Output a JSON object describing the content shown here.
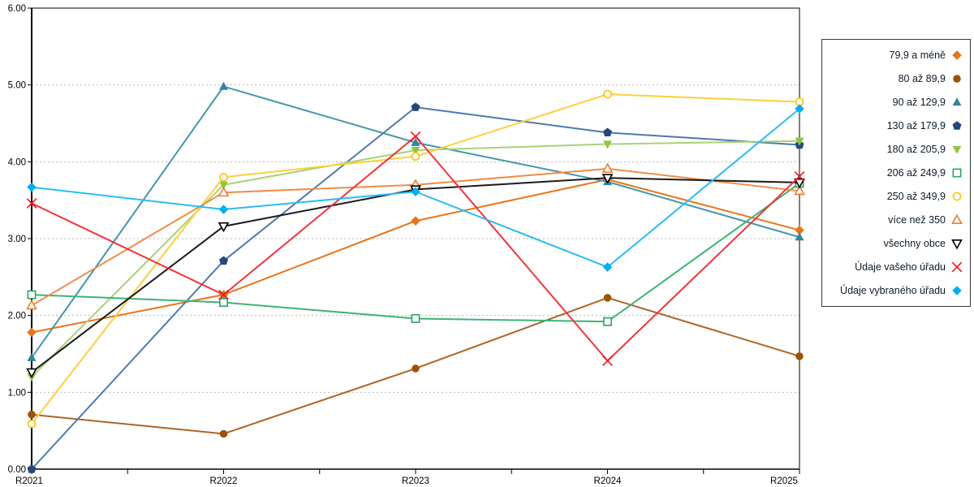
{
  "chart_data": {
    "type": "line",
    "title": "",
    "xlabel": "",
    "ylabel": "",
    "categories": [
      "R2021",
      "R2022",
      "R2023",
      "R2024",
      "R2025"
    ],
    "y_axis": {
      "min": 0,
      "max": 6,
      "step": 1,
      "tick_labels": [
        "0.00",
        "1.00",
        "2.00",
        "3.00",
        "4.00",
        "5.00",
        "6.00"
      ]
    },
    "grid": "horizontal-dashed",
    "legend_position": "right-outside",
    "series": [
      {
        "name": "79,9 a méně",
        "marker": "diamond",
        "color": "#e8751a",
        "line_color": "#e8751a",
        "values": [
          1.78,
          2.27,
          3.23,
          3.77,
          3.11
        ]
      },
      {
        "name": "80 až 89,9",
        "marker": "circle",
        "color": "#9d5206",
        "line_color": "#ad6426",
        "values": [
          0.71,
          0.46,
          1.31,
          2.23,
          1.47
        ]
      },
      {
        "name": "90 až 129,9",
        "marker": "triangle-up",
        "color": "#31859c",
        "line_color": "#4596aa",
        "values": [
          1.45,
          4.98,
          4.25,
          3.74,
          3.02
        ]
      },
      {
        "name": "130 až 179,9",
        "marker": "pentagon",
        "color": "#25477a",
        "line_color": "#4d79b0",
        "values": [
          0.0,
          2.71,
          4.71,
          4.38,
          4.22
        ]
      },
      {
        "name": "180 až 205,9",
        "marker": "triangle-down",
        "color": "#8ec63f",
        "line_color": "#a9d276",
        "values": [
          1.2,
          3.7,
          4.15,
          4.23,
          4.27
        ]
      },
      {
        "name": "206 až 249,9",
        "marker": "square-open",
        "color": "#2ba45c",
        "line_color": "#3db377",
        "values": [
          2.27,
          2.17,
          1.96,
          1.92,
          3.72
        ]
      },
      {
        "name": "250 až 349,9",
        "marker": "circle-open",
        "color": "#ffc000",
        "line_color": "#ffce3d",
        "values": [
          0.59,
          3.8,
          4.07,
          4.88,
          4.78
        ]
      },
      {
        "name": "více než 350",
        "marker": "triangle-up-open",
        "color": "#ed7d31",
        "line_color": "#f08c48",
        "values": [
          2.13,
          3.6,
          3.7,
          3.91,
          3.62
        ]
      },
      {
        "name": "všechny obce",
        "marker": "triangle-down-open",
        "color": "#000000",
        "line_color": "#1a1a1a",
        "values": [
          1.26,
          3.16,
          3.64,
          3.79,
          3.73
        ]
      },
      {
        "name": "Údaje vašeho úřadu",
        "marker": "x",
        "color": "#f3141e",
        "line_color": "#f3333c",
        "values": [
          3.46,
          2.27,
          4.33,
          1.41,
          3.81
        ]
      },
      {
        "name": "Údaje vybraného úřadu",
        "marker": "diamond",
        "color": "#00b0f0",
        "line_color": "#29bdf4",
        "values": [
          3.67,
          3.38,
          3.61,
          2.63,
          4.69
        ]
      }
    ]
  }
}
